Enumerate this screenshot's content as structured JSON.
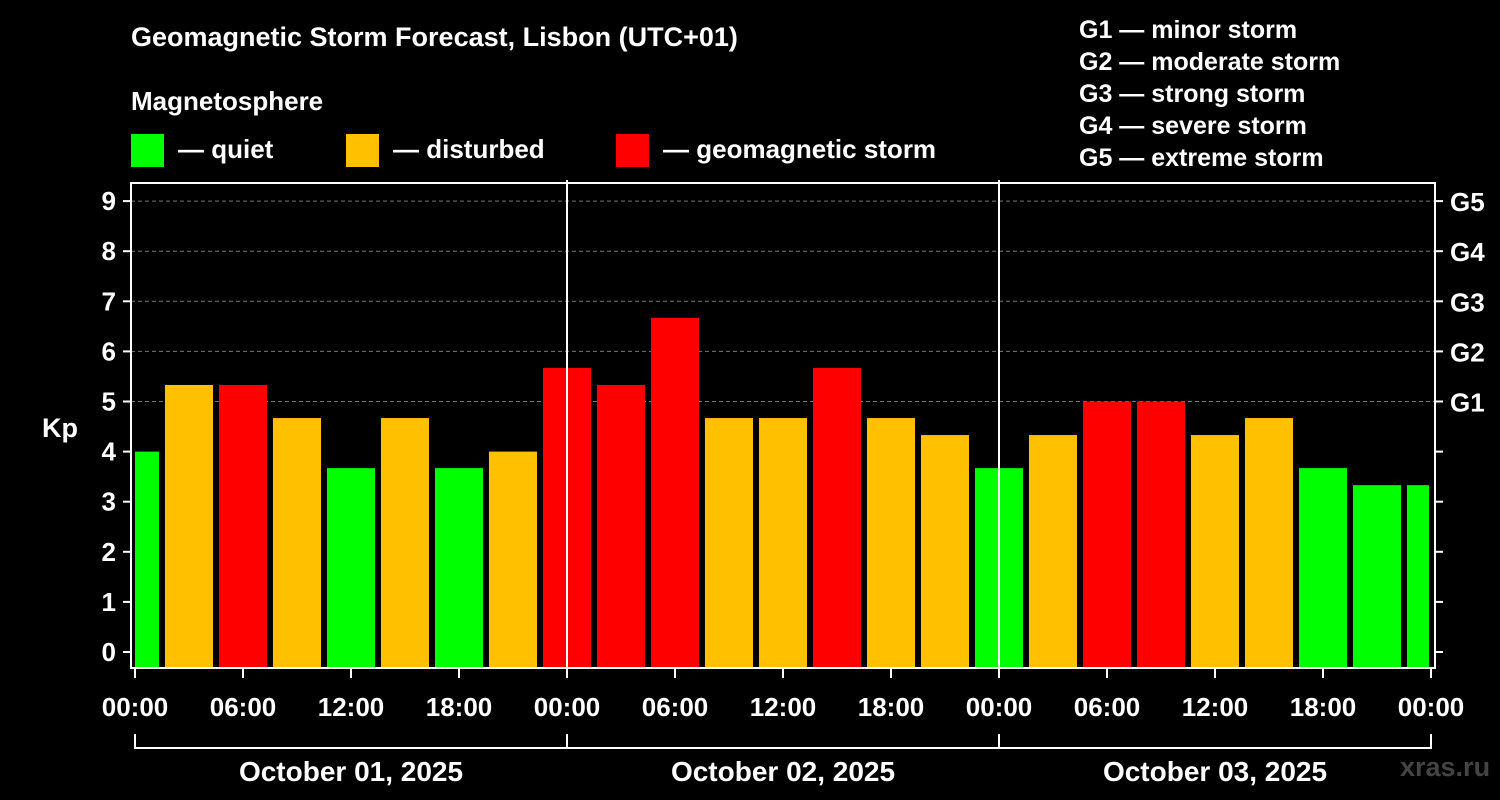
{
  "title": "Geomagnetic Storm Forecast, Lisbon (UTC+01)",
  "subtitle": "Magnetosphere",
  "legend": [
    {
      "label": "— quiet",
      "color": "#00ff00"
    },
    {
      "label": "— disturbed",
      "color": "#ffc000"
    },
    {
      "label": "— geomagnetic storm",
      "color": "#ff0000"
    }
  ],
  "storm_levels": [
    "G1 — minor storm",
    "G2 — moderate storm",
    "G3 — strong storm",
    "G4 — severe storm",
    "G5 — extreme storm"
  ],
  "watermark": "xras.ru",
  "chart_data": {
    "type": "bar",
    "title": "Geomagnetic Storm Forecast, Lisbon (UTC+01)",
    "ylabel": "Kp",
    "ylim": [
      0,
      9
    ],
    "yticks": [
      "0",
      "1",
      "2",
      "3",
      "4",
      "5",
      "6",
      "7",
      "8",
      "9"
    ],
    "right_ticks": [
      {
        "kp": 5,
        "label": "G1"
      },
      {
        "kp": 6,
        "label": "G2"
      },
      {
        "kp": 7,
        "label": "G3"
      },
      {
        "kp": 8,
        "label": "G4"
      },
      {
        "kp": 9,
        "label": "G5"
      }
    ],
    "xticks": [
      "00:00",
      "06:00",
      "12:00",
      "18:00",
      "00:00",
      "06:00",
      "12:00",
      "18:00",
      "00:00",
      "06:00",
      "12:00",
      "18:00",
      "00:00"
    ],
    "days": [
      "October 01, 2025",
      "October 02, 2025",
      "October 03, 2025"
    ],
    "bar_hours": [
      0,
      3,
      6,
      9,
      12,
      15,
      18,
      21,
      24,
      27,
      30,
      33,
      36,
      39,
      42,
      45,
      48,
      51,
      54,
      57,
      60,
      63,
      66,
      69,
      72
    ],
    "values": [
      4.0,
      5.33,
      5.33,
      4.67,
      3.67,
      4.67,
      3.67,
      4.0,
      5.67,
      5.33,
      6.67,
      4.67,
      4.67,
      5.67,
      4.67,
      4.33,
      3.67,
      4.33,
      5.0,
      5.0,
      4.33,
      4.67,
      3.67,
      3.33,
      3.33
    ],
    "categories": [
      "quiet",
      "disturbed",
      "storm",
      "disturbed",
      "quiet",
      "disturbed",
      "quiet",
      "disturbed",
      "storm",
      "storm",
      "storm",
      "disturbed",
      "disturbed",
      "storm",
      "disturbed",
      "disturbed",
      "quiet",
      "disturbed",
      "storm",
      "storm",
      "disturbed",
      "disturbed",
      "quiet",
      "quiet",
      "quiet"
    ],
    "colors": {
      "quiet": "#00ff00",
      "disturbed": "#ffc000",
      "storm": "#ff0000"
    }
  }
}
